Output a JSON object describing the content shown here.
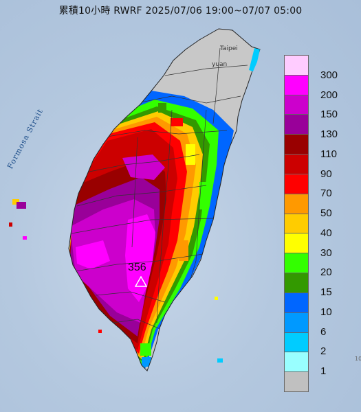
{
  "title": "累積10小時 RWRF 2025/07/06 19:00~07/07 05:00",
  "sea_label": "Formosa Strait",
  "city_labels": [
    "Taipei",
    "yuan"
  ],
  "max_marker": {
    "value": "356",
    "symbol": "triangle-marker-icon"
  },
  "legend": {
    "unit_levels": [
      {
        "label": "300",
        "color": "#ffccff"
      },
      {
        "label": "200",
        "color": "#ff00ff"
      },
      {
        "label": "150",
        "color": "#cc00cc"
      },
      {
        "label": "130",
        "color": "#990099"
      },
      {
        "label": "110",
        "color": "#990000"
      },
      {
        "label": "90",
        "color": "#cc0000"
      },
      {
        "label": "70",
        "color": "#ff0000"
      },
      {
        "label": "50",
        "color": "#ff9900"
      },
      {
        "label": "40",
        "color": "#ffcc00"
      },
      {
        "label": "30",
        "color": "#ffff00"
      },
      {
        "label": "20",
        "color": "#33ff00"
      },
      {
        "label": "15",
        "color": "#339900"
      },
      {
        "label": "10",
        "color": "#0066ff"
      },
      {
        "label": "6",
        "color": "#0099ff"
      },
      {
        "label": "2",
        "color": "#00ccff"
      },
      {
        "label": "1",
        "color": "#99ffff"
      },
      {
        "label": "",
        "color": "#c0c0c0"
      }
    ]
  },
  "corner_text": "10"
}
